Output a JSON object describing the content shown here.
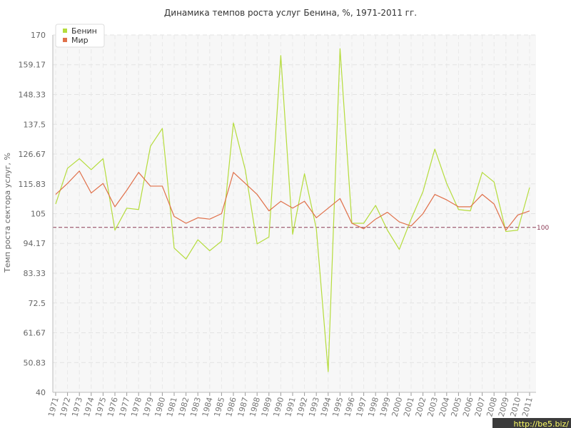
{
  "chart_data": {
    "type": "line",
    "title": "Динамика темпов роста услуг Бенина, %, 1971-2011 гг.",
    "ylabel": "Темп роста сектора услуг, %",
    "xlabel": "",
    "ylim": [
      40,
      170
    ],
    "yticks": [
      "40",
      "50.83",
      "61.67",
      "72.5",
      "83.33",
      "94.17",
      "105",
      "115.83",
      "126.67",
      "137.5",
      "148.33",
      "159.17",
      "170"
    ],
    "ytick_values": [
      40,
      50.83,
      61.67,
      72.5,
      83.33,
      94.17,
      105,
      115.83,
      126.67,
      137.5,
      148.33,
      159.17,
      170
    ],
    "categories": [
      "1971",
      "1972",
      "1973",
      "1974",
      "1975",
      "1976",
      "1977",
      "1978",
      "1979",
      "1980",
      "1981",
      "1982",
      "1983",
      "1984",
      "1985",
      "1986",
      "1987",
      "1988",
      "1989",
      "1990",
      "1991",
      "1992",
      "1993",
      "1994",
      "1995",
      "1996",
      "1997",
      "1998",
      "1999",
      "2000",
      "2001",
      "2002",
      "2003",
      "2004",
      "2005",
      "2006",
      "2007",
      "2008",
      "2009",
      "2010",
      "2011"
    ],
    "series": [
      {
        "name": "Бенин",
        "color": "#b5dc3c",
        "values": [
          108.5,
          121.5,
          125,
          121,
          125,
          99,
          107,
          106.5,
          129.5,
          136,
          92.5,
          88.5,
          95.5,
          91.5,
          95,
          138,
          121,
          94,
          96.5,
          162.5,
          97.5,
          119.5,
          99.5,
          47.5,
          165,
          101.5,
          101.5,
          108,
          99,
          92,
          103,
          113,
          128.5,
          116,
          106.5,
          106,
          120,
          116.5,
          98.5,
          99,
          114.5
        ]
      },
      {
        "name": "Мир",
        "color": "#e0704a",
        "values": [
          112,
          116,
          120.5,
          112.5,
          116,
          107.5,
          113.5,
          120,
          115,
          115,
          104,
          101.5,
          103.5,
          103,
          105,
          120,
          116,
          112,
          106,
          109.5,
          107,
          109.5,
          103.5,
          107,
          110.5,
          101.5,
          99.5,
          103,
          105.5,
          102,
          100.5,
          105,
          112,
          110,
          107.5,
          107.5,
          112,
          108.5,
          99,
          104.5,
          106
        ]
      }
    ],
    "reference_line": {
      "value": 100,
      "label": "100",
      "color": "#8b3a55"
    },
    "grid": true,
    "legend": "top-left"
  },
  "watermark": "http://be5.biz/"
}
